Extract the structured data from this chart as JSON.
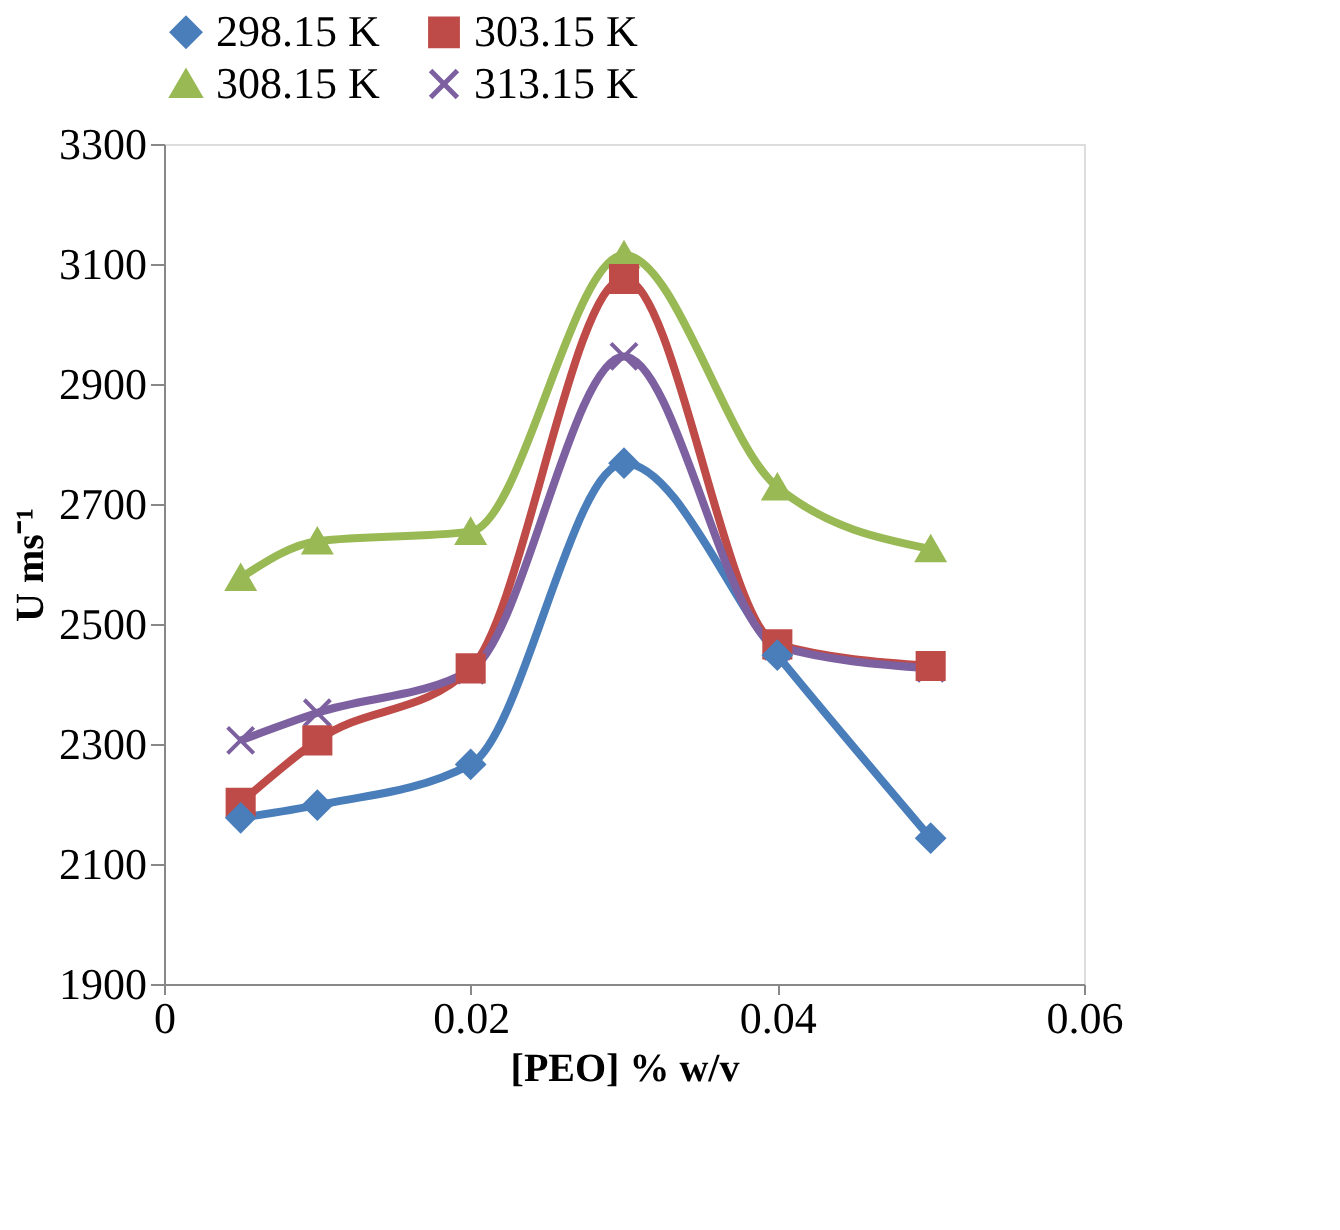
{
  "chart_data": {
    "type": "line",
    "xlabel": "[PEO] % w/v",
    "ylabel": "U ms⁻¹",
    "x": [
      0.005,
      0.01,
      0.02,
      0.03,
      0.04,
      0.05
    ],
    "series": [
      {
        "name": "298.15 K",
        "color": "#4a7ebb",
        "marker": "diamond",
        "values": [
          2177,
          2198,
          2266,
          2768,
          2448,
          2143
        ]
      },
      {
        "name": "303.15 K",
        "color": "#be4b48",
        "marker": "square",
        "values": [
          2202,
          2306,
          2426,
          3075,
          2466,
          2430
        ]
      },
      {
        "name": "308.15 K",
        "color": "#98b954",
        "marker": "triangle",
        "values": [
          2577,
          2638,
          2654,
          3115,
          2728,
          2625
        ]
      },
      {
        "name": "313.15 K",
        "color": "#7d60a0",
        "marker": "cross",
        "values": [
          2306,
          2352,
          2423,
          2946,
          2463,
          2426
        ]
      }
    ],
    "xlim": [
      0,
      0.06
    ],
    "xticks": [
      0,
      0.02,
      0.04,
      0.06
    ],
    "ylim": [
      1900,
      3300
    ],
    "yticks": [
      1900,
      2100,
      2300,
      2500,
      2700,
      2900,
      3100,
      3300
    ],
    "grid": false,
    "legend": "top",
    "line_style": "solid"
  }
}
